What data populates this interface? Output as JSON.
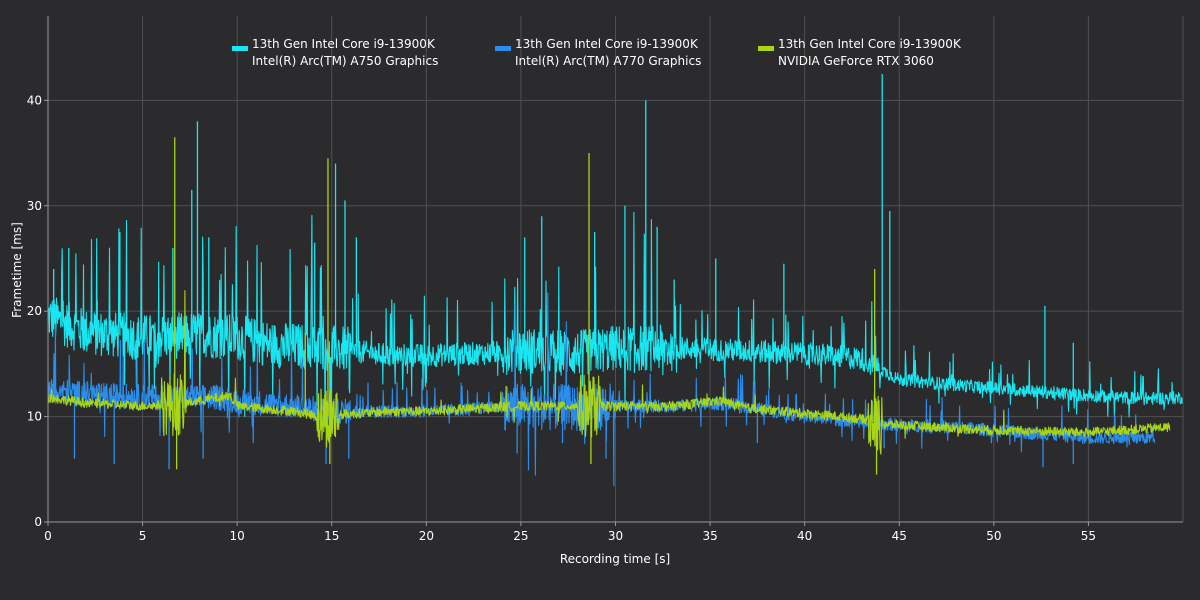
{
  "chart_data": {
    "type": "line",
    "xlabel": "Recording time [s]",
    "ylabel": "Frametime [ms]",
    "xlim": [
      0,
      60
    ],
    "ylim": [
      0,
      48
    ],
    "x_ticks": [
      0,
      5,
      10,
      15,
      20,
      25,
      30,
      35,
      40,
      45,
      50,
      55
    ],
    "y_ticks": [
      0,
      10,
      20,
      30,
      40
    ],
    "grid": true,
    "legend_position": "top",
    "colors": {
      "background": "#2b2b2d",
      "grid": "#505052",
      "axis": "#9a9a9a"
    },
    "series": [
      {
        "name": "13th Gen Intel Core i9-13900K\nIntel(R) Arc(TM) A750 Graphics",
        "legend_line1": "13th Gen Intel Core i9-13900K",
        "legend_line2": "Intel(R) Arc(TM) A750 Graphics",
        "color": "#19e6f0",
        "x_end": 60,
        "baseline": [
          [
            0,
            19.5
          ],
          [
            2,
            18
          ],
          [
            5,
            17.5
          ],
          [
            8,
            17.8
          ],
          [
            10,
            17.5
          ],
          [
            12,
            16.8
          ],
          [
            15,
            16.5
          ],
          [
            18,
            15.8
          ],
          [
            20,
            15.8
          ],
          [
            23,
            16
          ],
          [
            25,
            16.3
          ],
          [
            28,
            16
          ],
          [
            30,
            16.5
          ],
          [
            33,
            16.5
          ],
          [
            36,
            16.3
          ],
          [
            40,
            16
          ],
          [
            43,
            15.5
          ],
          [
            44,
            14.5
          ],
          [
            45,
            13.5
          ],
          [
            48,
            13
          ],
          [
            50,
            12.7
          ],
          [
            55,
            12
          ],
          [
            58,
            11.7
          ],
          [
            60,
            11.8
          ]
        ],
        "spikes": [
          [
            0.3,
            24
          ],
          [
            0.8,
            21
          ],
          [
            1.1,
            26
          ],
          [
            2.6,
            21
          ],
          [
            3.8,
            27.5
          ],
          [
            6.6,
            26
          ],
          [
            7.6,
            31.5
          ],
          [
            7.9,
            38
          ],
          [
            8.5,
            27
          ],
          [
            14.1,
            26.5
          ],
          [
            15.2,
            34
          ],
          [
            15.7,
            30.5
          ],
          [
            16.3,
            27
          ],
          [
            25.2,
            27
          ],
          [
            26.1,
            29
          ],
          [
            28.9,
            27.5
          ],
          [
            30.5,
            30
          ],
          [
            31.6,
            40
          ],
          [
            32.2,
            28
          ],
          [
            33.1,
            23
          ],
          [
            35.3,
            25
          ],
          [
            38.9,
            24.5
          ],
          [
            44.1,
            42.5
          ],
          [
            44.5,
            29.5
          ],
          [
            52.7,
            20.5
          ],
          [
            54.2,
            17
          ]
        ]
      },
      {
        "name": "13th Gen Intel Core i9-13900K\nIntel(R) Arc(TM) A770 Graphics",
        "legend_line1": "13th Gen Intel Core i9-13900K",
        "legend_line2": "Intel(R) Arc(TM) A770 Graphics",
        "color": "#2b8eec",
        "x_end": 58.5,
        "baseline": [
          [
            0,
            12.5
          ],
          [
            3,
            12
          ],
          [
            6,
            11.8
          ],
          [
            9,
            11.8
          ],
          [
            10,
            11.5
          ],
          [
            13,
            11
          ],
          [
            15,
            10.5
          ],
          [
            18,
            10.5
          ],
          [
            20,
            10.5
          ],
          [
            23,
            10.8
          ],
          [
            25,
            11
          ],
          [
            28,
            10.8
          ],
          [
            30,
            11
          ],
          [
            33,
            11
          ],
          [
            36,
            11.2
          ],
          [
            40,
            10
          ],
          [
            43,
            9.5
          ],
          [
            45,
            9.2
          ],
          [
            48,
            9
          ],
          [
            50,
            8.7
          ],
          [
            55,
            8
          ],
          [
            58.5,
            8
          ]
        ],
        "spikes": [
          [
            1.4,
            6
          ],
          [
            3.5,
            5.5
          ],
          [
            6.4,
            5
          ],
          [
            8.2,
            6
          ],
          [
            14.7,
            5.5
          ],
          [
            15.9,
            6
          ],
          [
            24.8,
            6.5
          ],
          [
            27.2,
            7.5
          ],
          [
            29.5,
            6
          ],
          [
            37.5,
            7.5
          ],
          [
            44.2,
            7
          ],
          [
            52.6,
            5.2
          ],
          [
            54.2,
            5.5
          ]
        ]
      },
      {
        "name": "13th Gen Intel Core i9-13900K\nNVIDIA GeForce RTX 3060",
        "legend_line1": "13th Gen Intel Core i9-13900K",
        "legend_line2": "NVIDIA GeForce RTX 3060",
        "color": "#a8d614",
        "x_end": 59.3,
        "baseline": [
          [
            0,
            11.8
          ],
          [
            2,
            11.3
          ],
          [
            5,
            11
          ],
          [
            7,
            11.2
          ],
          [
            9,
            11.8
          ],
          [
            9.6,
            12
          ],
          [
            10,
            11
          ],
          [
            13,
            10.5
          ],
          [
            14.5,
            10
          ],
          [
            15.5,
            10.2
          ],
          [
            18,
            10.5
          ],
          [
            20,
            10.5
          ],
          [
            23,
            10.8
          ],
          [
            25,
            11
          ],
          [
            28,
            11
          ],
          [
            30,
            11
          ],
          [
            33,
            11
          ],
          [
            35.5,
            11.5
          ],
          [
            37,
            10.8
          ],
          [
            40,
            10.3
          ],
          [
            43,
            9.8
          ],
          [
            44,
            9.3
          ],
          [
            47,
            9
          ],
          [
            50,
            8.7
          ],
          [
            55,
            8.5
          ],
          [
            59.3,
            9
          ]
        ],
        "spikes": [
          [
            6.7,
            36.5
          ],
          [
            6.8,
            5
          ],
          [
            13.6,
            18
          ],
          [
            14.8,
            34.5
          ],
          [
            14.9,
            5.5
          ],
          [
            28.6,
            35
          ],
          [
            28.7,
            5.5
          ],
          [
            43.7,
            24
          ],
          [
            43.8,
            4.5
          ]
        ]
      }
    ]
  }
}
